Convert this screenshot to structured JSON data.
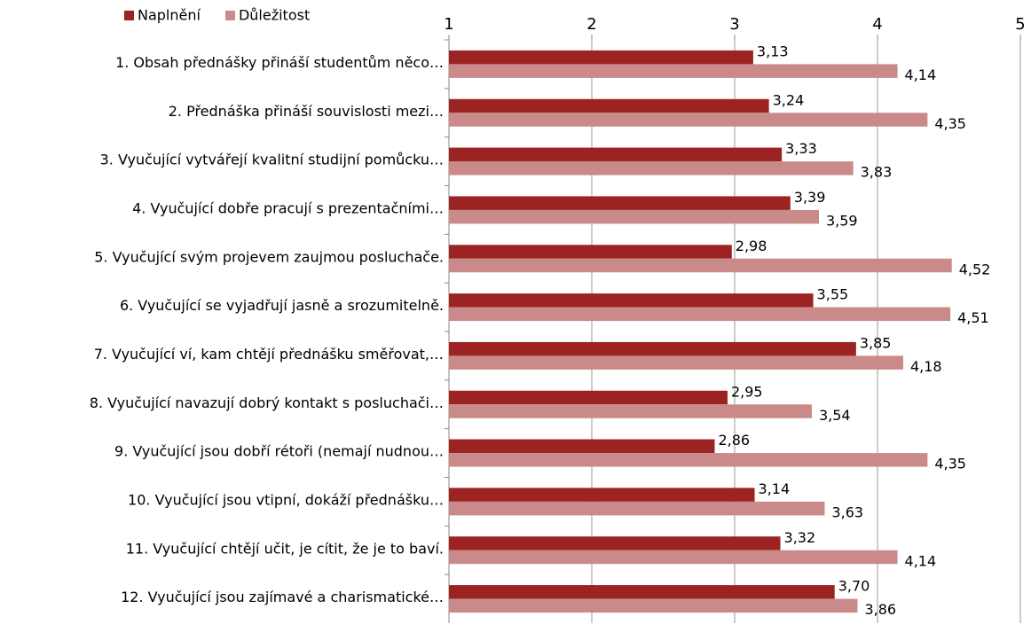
{
  "chart_data": {
    "type": "hbar",
    "categories": [
      "1. Obsah přednášky přináší studentům něco…",
      "2. Přednáška přináší souvislosti mezi…",
      "3. Vyučující vytvářejí kvalitní studijní pomůcku…",
      "4. Vyučující dobře pracují s prezentačními…",
      "5. Vyučující svým projevem zaujmou posluchače.",
      "6.  Vyučující se vyjadřují jasně a srozumitelně.",
      "7. Vyučující ví, kam chtějí přednášku směřovat,…",
      "8. Vyučující navazují dobrý kontakt s posluchači…",
      "9. Vyučující jsou dobří rétoři (nemají nudnou…",
      "10. Vyučující jsou vtipní, dokáží přednášku…",
      "11. Vyučující chtějí učit, je cítit, že je to baví.",
      "12. Vyučující jsou zajímavé a charismatické…"
    ],
    "series": [
      {
        "name": "Naplnění",
        "color": "#9b2423",
        "values": [
          3.13,
          3.24,
          3.33,
          3.39,
          2.98,
          3.55,
          3.85,
          2.95,
          2.86,
          3.14,
          3.32,
          3.7
        ],
        "value_labels": [
          "3,13",
          "3,24",
          "3,33",
          "3,39",
          "2,98",
          "3,55",
          "3,85",
          "2,95",
          "2,86",
          "3,14",
          "3,32",
          "3,70"
        ]
      },
      {
        "name": "Důležitost",
        "color": "#c98a89",
        "values": [
          4.14,
          4.35,
          3.83,
          3.59,
          4.52,
          4.51,
          4.18,
          3.54,
          4.35,
          3.63,
          4.14,
          3.86
        ],
        "value_labels": [
          "4,14",
          "4,35",
          "3,83",
          "3,59",
          "4,52",
          "4,51",
          "4,18",
          "3,54",
          "4,35",
          "3,63",
          "4,14",
          "3,86"
        ]
      }
    ],
    "xlim": [
      1,
      5
    ],
    "xticks": [
      1,
      2,
      3,
      4,
      5
    ],
    "grid": true,
    "legend": "top-left"
  }
}
